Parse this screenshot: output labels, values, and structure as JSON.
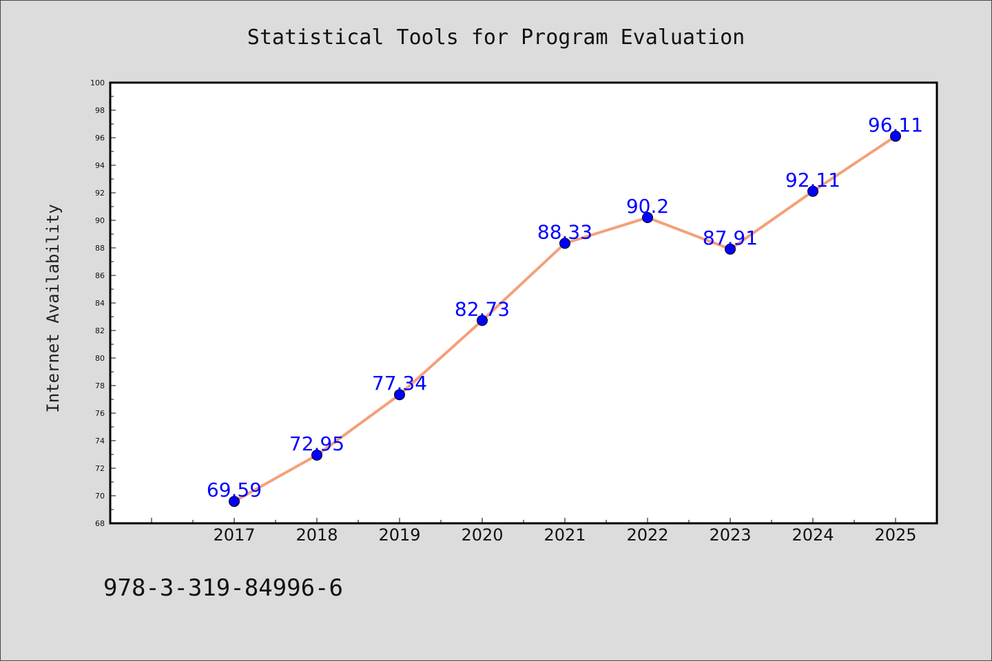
{
  "colors": {
    "background": "#dcdcdc",
    "plot_background": "#ffffff",
    "line": "#f4a07a",
    "marker": "#0000ff",
    "label": "#0000ff"
  },
  "caption": "978-3-319-84996-6",
  "chart_data": {
    "type": "line",
    "title": "Statistical Tools for Program Evaluation",
    "xlabel": "",
    "ylabel": "Internet Availability",
    "categories": [
      "2017",
      "2018",
      "2019",
      "2020",
      "2021",
      "2022",
      "2023",
      "2024",
      "2025"
    ],
    "series": [
      {
        "values": [
          69.59,
          72.95,
          77.34,
          82.73,
          88.33,
          90.2,
          87.91,
          92.11,
          96.11
        ],
        "data_labels": [
          "69.59",
          "72.95",
          "77.34",
          "82.73",
          "88.33",
          "90.2",
          "87.91",
          "92.11",
          "96.11"
        ]
      }
    ],
    "ylim": [
      68,
      100
    ],
    "yticks": [
      "68",
      "70",
      "72",
      "74",
      "76",
      "78",
      "80",
      "82",
      "84",
      "86",
      "88",
      "90",
      "92",
      "94",
      "96",
      "98",
      "100"
    ],
    "grid": false,
    "legend": "none"
  }
}
